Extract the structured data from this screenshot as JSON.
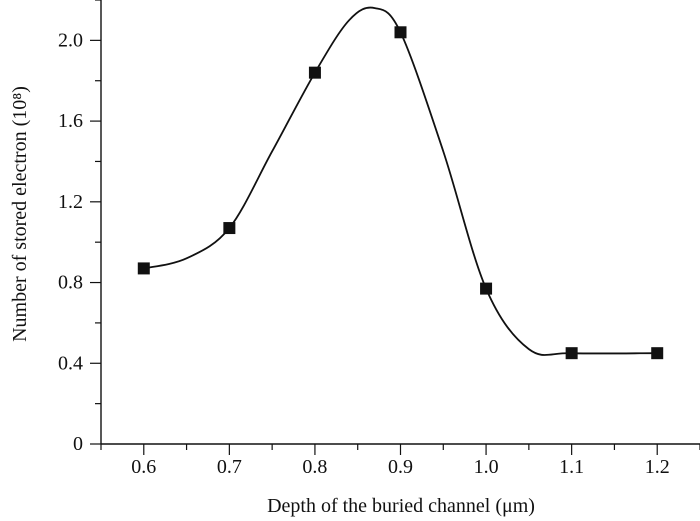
{
  "chart_data": {
    "type": "line",
    "title": "",
    "xlabel": "Depth of the buried channel (μm)",
    "ylabel": "Number of stored electron (10⁸)",
    "x": [
      0.6,
      0.7,
      0.8,
      0.9,
      1.0,
      1.1,
      1.2
    ],
    "series": [
      {
        "values": [
          0.87,
          1.07,
          1.84,
          2.04,
          0.77,
          0.45,
          0.45
        ]
      }
    ],
    "xlim": [
      0.55,
      1.25
    ],
    "ylim": [
      0,
      2.2
    ],
    "xticks": [
      "0.6",
      "0.7",
      "0.8",
      "0.9",
      "1.0",
      "1.1",
      "1.2"
    ],
    "yticks": [
      "0",
      "0.4",
      "0.8",
      "1.2",
      "1.6",
      "2.0"
    ],
    "grid": false,
    "legend": "none",
    "marker": "square",
    "line_color": "#111111"
  }
}
